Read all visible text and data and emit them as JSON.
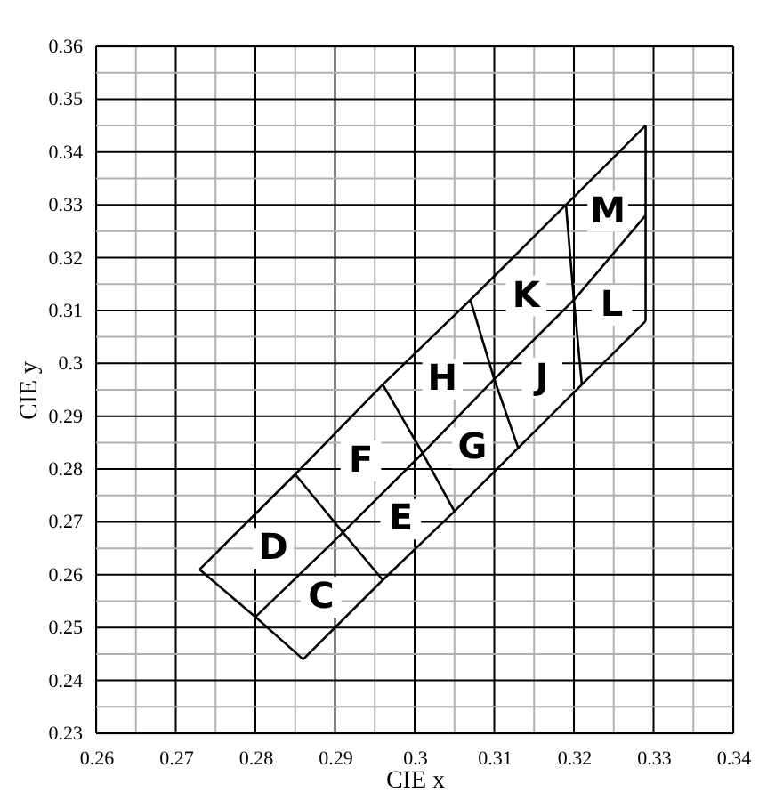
{
  "chart_data": {
    "type": "line",
    "xlabel": "CIE x",
    "ylabel": "CIE y",
    "xlim": [
      0.26,
      0.34
    ],
    "ylim": [
      0.23,
      0.36
    ],
    "xticks": [
      0.26,
      {
        "value": 0.265,
        "label": null
      },
      0.27,
      {
        "value": 0.275,
        "label": null
      },
      0.28,
      {
        "value": 0.285,
        "label": null
      },
      0.29,
      {
        "value": 0.295,
        "label": null
      },
      0.3,
      {
        "value": 0.305,
        "label": null
      },
      0.31,
      {
        "value": 0.315,
        "label": null
      },
      0.32,
      {
        "value": 0.325,
        "label": null
      },
      0.33,
      {
        "value": 0.335,
        "label": null
      },
      0.34
    ],
    "yticks": [
      0.23,
      {
        "value": 0.235,
        "label": null
      },
      0.24,
      {
        "value": 0.245,
        "label": null
      },
      0.25,
      {
        "value": 0.255,
        "label": null
      },
      0.26,
      {
        "value": 0.265,
        "label": null
      },
      0.27,
      {
        "value": 0.275,
        "label": null
      },
      0.28,
      {
        "value": 0.285,
        "label": null
      },
      0.29,
      {
        "value": 0.295,
        "label": null
      },
      0.3,
      {
        "value": 0.305,
        "label": null
      },
      0.31,
      {
        "value": 0.315,
        "label": null
      },
      0.32,
      {
        "value": 0.325,
        "label": null
      },
      0.33,
      {
        "value": 0.335,
        "label": null
      },
      0.34,
      {
        "value": 0.345,
        "label": null
      },
      0.35,
      {
        "value": 0.355,
        "label": null
      },
      0.36
    ],
    "grid": true,
    "series": [
      {
        "color": "#000000",
        "x": [
          0.273,
          0.285,
          0.296,
          0.307,
          0.319,
          0.329
        ],
        "values": [
          0.261,
          0.279,
          0.296,
          0.312,
          0.33,
          0.345
        ]
      },
      {
        "color": "#000000",
        "x": [
          0.28,
          0.291,
          0.301,
          0.31,
          0.32,
          0.329
        ],
        "values": [
          0.252,
          0.268,
          0.283,
          0.297,
          0.312,
          0.328
        ]
      },
      {
        "color": "#000000",
        "x": [
          0.286,
          0.296,
          0.305,
          0.313,
          0.321,
          0.329
        ],
        "values": [
          0.244,
          0.259,
          0.272,
          0.284,
          0.296,
          0.308
        ]
      },
      {
        "color": "#000000",
        "x": [
          0.273,
          0.28,
          0.286
        ],
        "values": [
          0.261,
          0.252,
          0.244
        ]
      },
      {
        "color": "#000000",
        "x": [
          0.285,
          0.291,
          0.296
        ],
        "values": [
          0.279,
          0.268,
          0.259
        ]
      },
      {
        "color": "#000000",
        "x": [
          0.296,
          0.301,
          0.305
        ],
        "values": [
          0.296,
          0.283,
          0.272
        ]
      },
      {
        "color": "#000000",
        "x": [
          0.307,
          0.31,
          0.313
        ],
        "values": [
          0.312,
          0.297,
          0.284
        ]
      },
      {
        "color": "#000000",
        "x": [
          0.319,
          0.32,
          0.321
        ],
        "values": [
          0.33,
          0.312,
          0.296
        ]
      },
      {
        "color": "#000000",
        "x": [
          0.329,
          0.329,
          0.329
        ],
        "values": [
          0.345,
          0.328,
          0.308
        ]
      }
    ],
    "annotations": [
      "C",
      "D",
      "E",
      "F",
      "G",
      "H",
      "J",
      "K",
      "L",
      "M"
    ]
  }
}
